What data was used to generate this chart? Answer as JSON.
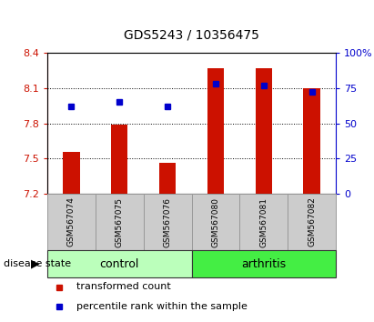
{
  "title": "GDS5243 / 10356475",
  "samples": [
    "GSM567074",
    "GSM567075",
    "GSM567076",
    "GSM567080",
    "GSM567081",
    "GSM567082"
  ],
  "bar_values": [
    7.56,
    7.79,
    7.46,
    8.27,
    8.27,
    8.1
  ],
  "percentile_values": [
    62,
    65,
    62,
    78,
    77,
    72
  ],
  "bar_bottom": 7.2,
  "ylim_left": [
    7.2,
    8.4
  ],
  "ylim_right": [
    0,
    100
  ],
  "yticks_left": [
    7.2,
    7.5,
    7.8,
    8.1,
    8.4
  ],
  "yticks_right": [
    0,
    25,
    50,
    75,
    100
  ],
  "ytick_labels_right": [
    "0",
    "25",
    "50",
    "75",
    "100%"
  ],
  "bar_color": "#cc1100",
  "marker_color": "#0000cc",
  "left_axis_color": "#cc1100",
  "right_axis_color": "#0000cc",
  "legend_bar_label": "transformed count",
  "legend_marker_label": "percentile rank within the sample",
  "disease_state_label": "disease state",
  "control_color": "#bbffbb",
  "arthritis_color": "#44ee44",
  "label_bg_color": "#cccccc",
  "plot_bg_color": "#ffffff",
  "title_fontsize": 10,
  "axis_fontsize": 8,
  "sample_fontsize": 6.5,
  "band_fontsize": 9,
  "legend_fontsize": 8
}
